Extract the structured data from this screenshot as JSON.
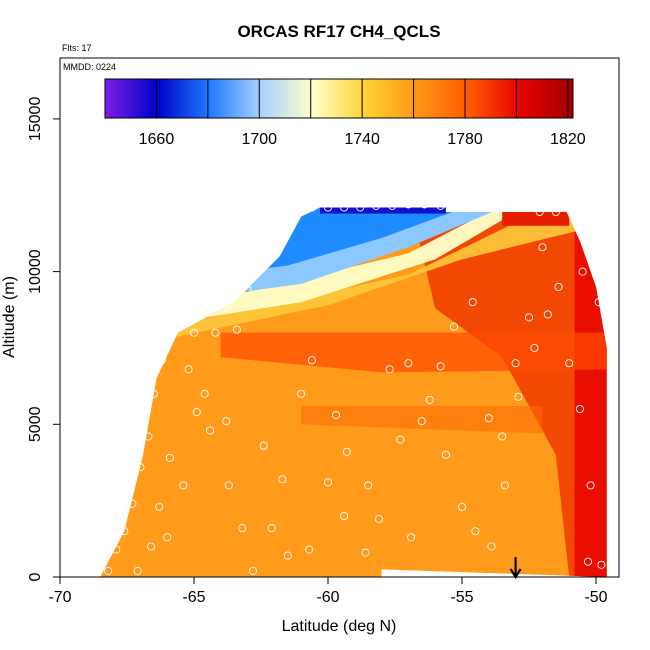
{
  "chart_data": {
    "type": "heatmap",
    "title": "ORCAS RF17 CH4_QCLS",
    "flights_label": "Flts: 17",
    "date_label": "MMDD: 0224",
    "xlabel": "Latitude (deg N)",
    "ylabel": "Altitude (m)",
    "xlim": [
      -70,
      -49
    ],
    "ylim": [
      0,
      16800
    ],
    "x_ticks": [
      -70,
      -65,
      -60,
      -55,
      -50
    ],
    "x_tick_labels": [
      "-70",
      "-65",
      "-60",
      "-55",
      "-50"
    ],
    "y_ticks": [
      0,
      5000,
      10000,
      15000
    ],
    "y_tick_labels": [
      "0",
      "5000",
      "10000",
      "15000"
    ],
    "colorbar": {
      "min": 1640,
      "max": 1822,
      "ticks": [
        1660,
        1700,
        1740,
        1780,
        1820
      ],
      "tick_labels": [
        "1660",
        "1700",
        "1740",
        "1780",
        "1820"
      ],
      "colors": [
        "#7b1fe6",
        "#0000c8",
        "#1e78ff",
        "#aad2ff",
        "#ffffc8",
        "#ffd232",
        "#ff9614",
        "#ff5a00",
        "#e60000",
        "#a00000"
      ]
    },
    "marker": {
      "type": "arrow",
      "x": -53,
      "label": "down-arrow"
    },
    "field_boundary": {
      "lower_left_edge": [
        [
          -68.5,
          0
        ],
        [
          -67.6,
          1500
        ],
        [
          -66.9,
          4000
        ],
        [
          -66.4,
          6500
        ],
        [
          -65.6,
          8000
        ],
        [
          -63.5,
          9000
        ],
        [
          -61.8,
          10500
        ],
        [
          -61.0,
          11800
        ],
        [
          -60.3,
          12100
        ]
      ],
      "top_edge": [
        [
          -60.3,
          12100
        ],
        [
          -55.6,
          12100
        ],
        [
          -55.6,
          11950
        ],
        [
          -51.1,
          11950
        ]
      ],
      "right_edge": [
        [
          -51.1,
          11950
        ],
        [
          -50.6,
          11000
        ],
        [
          -50.0,
          9500
        ],
        [
          -49.6,
          7500
        ],
        [
          -49.6,
          0
        ]
      ],
      "bottom_notch": [
        [
          -58.0,
          0
        ],
        [
          -58.0,
          250
        ],
        [
          -49.6,
          250
        ]
      ]
    },
    "observations": [
      {
        "lat": -68.2,
        "alt": 200
      },
      {
        "lat": -67.9,
        "alt": 900
      },
      {
        "lat": -67.6,
        "alt": 1500
      },
      {
        "lat": -67.3,
        "alt": 2400
      },
      {
        "lat": -67.0,
        "alt": 3600
      },
      {
        "lat": -66.7,
        "alt": 4600
      },
      {
        "lat": -66.5,
        "alt": 6000
      },
      {
        "lat": -66.2,
        "alt": 7100
      },
      {
        "lat": -65.8,
        "alt": 8000
      },
      {
        "lat": -65.0,
        "alt": 8000
      },
      {
        "lat": -64.2,
        "alt": 8000
      },
      {
        "lat": -63.4,
        "alt": 8100
      },
      {
        "lat": -67.1,
        "alt": 200
      },
      {
        "lat": -66.6,
        "alt": 1000
      },
      {
        "lat": -66.3,
        "alt": 2300
      },
      {
        "lat": -65.9,
        "alt": 3900
      },
      {
        "lat": -64.9,
        "alt": 5400
      },
      {
        "lat": -64.4,
        "alt": 4800
      },
      {
        "lat": -63.7,
        "alt": 3000
      },
      {
        "lat": -63.2,
        "alt": 1600
      },
      {
        "lat": -62.8,
        "alt": 200
      },
      {
        "lat": -62.1,
        "alt": 1600
      },
      {
        "lat": -61.7,
        "alt": 3200
      },
      {
        "lat": -61.0,
        "alt": 6000
      },
      {
        "lat": -60.6,
        "alt": 7100
      },
      {
        "lat": -59.7,
        "alt": 5300
      },
      {
        "lat": -59.3,
        "alt": 4100
      },
      {
        "lat": -58.5,
        "alt": 3000
      },
      {
        "lat": -58.1,
        "alt": 1900
      },
      {
        "lat": -57.7,
        "alt": 6800
      },
      {
        "lat": -57.0,
        "alt": 7000
      },
      {
        "lat": -56.2,
        "alt": 5800
      },
      {
        "lat": -55.6,
        "alt": 4000
      },
      {
        "lat": -55.0,
        "alt": 2300
      },
      {
        "lat": -54.5,
        "alt": 1500
      },
      {
        "lat": -54.0,
        "alt": 5200
      },
      {
        "lat": -53.5,
        "alt": 4600
      },
      {
        "lat": -53.0,
        "alt": 7000
      },
      {
        "lat": -52.5,
        "alt": 8500
      },
      {
        "lat": -52.0,
        "alt": 10800
      },
      {
        "lat": -51.4,
        "alt": 9500
      },
      {
        "lat": -51.0,
        "alt": 7000
      },
      {
        "lat": -50.6,
        "alt": 5500
      },
      {
        "lat": -50.2,
        "alt": 3000
      },
      {
        "lat": -49.9,
        "alt": 9000
      },
      {
        "lat": -49.8,
        "alt": 400
      },
      {
        "lat": -50.3,
        "alt": 500
      },
      {
        "lat": -50.5,
        "alt": 10000
      },
      {
        "lat": -61.8,
        "alt": 12100
      },
      {
        "lat": -61.2,
        "alt": 12100
      },
      {
        "lat": -60.6,
        "alt": 12100
      },
      {
        "lat": -60.0,
        "alt": 12100
      },
      {
        "lat": -59.4,
        "alt": 12100
      },
      {
        "lat": -58.8,
        "alt": 12100
      },
      {
        "lat": -58.2,
        "alt": 12150
      },
      {
        "lat": -57.6,
        "alt": 12150
      },
      {
        "lat": -57.0,
        "alt": 12200
      },
      {
        "lat": -56.4,
        "alt": 12200
      },
      {
        "lat": -55.8,
        "alt": 12150
      },
      {
        "lat": -52.1,
        "alt": 11950
      },
      {
        "lat": -51.5,
        "alt": 11950
      },
      {
        "lat": -62.5,
        "alt": 10800
      },
      {
        "lat": -63.0,
        "alt": 9400
      },
      {
        "lat": -64.5,
        "alt": 9000
      },
      {
        "lat": -65.2,
        "alt": 6800
      },
      {
        "lat": -64.6,
        "alt": 6000
      },
      {
        "lat": -63.8,
        "alt": 5100
      },
      {
        "lat": -66.0,
        "alt": 1300
      },
      {
        "lat": -65.4,
        "alt": 3000
      },
      {
        "lat": -62.4,
        "alt": 4300
      },
      {
        "lat": -60.0,
        "alt": 3100
      },
      {
        "lat": -56.9,
        "alt": 1300
      },
      {
        "lat": -55.3,
        "alt": 8200
      },
      {
        "lat": -55.8,
        "alt": 6900
      },
      {
        "lat": -56.5,
        "alt": 5100
      },
      {
        "lat": -57.3,
        "alt": 4500
      },
      {
        "lat": -58.6,
        "alt": 800
      },
      {
        "lat": -59.4,
        "alt": 2000
      },
      {
        "lat": -60.7,
        "alt": 900
      },
      {
        "lat": -61.5,
        "alt": 700
      },
      {
        "lat": -53.9,
        "alt": 1000
      },
      {
        "lat": -53.4,
        "alt": 3000
      },
      {
        "lat": -52.9,
        "alt": 5900
      },
      {
        "lat": -52.3,
        "alt": 7500
      },
      {
        "lat": -51.8,
        "alt": 8600
      },
      {
        "lat": -54.6,
        "alt": 9000
      }
    ]
  }
}
